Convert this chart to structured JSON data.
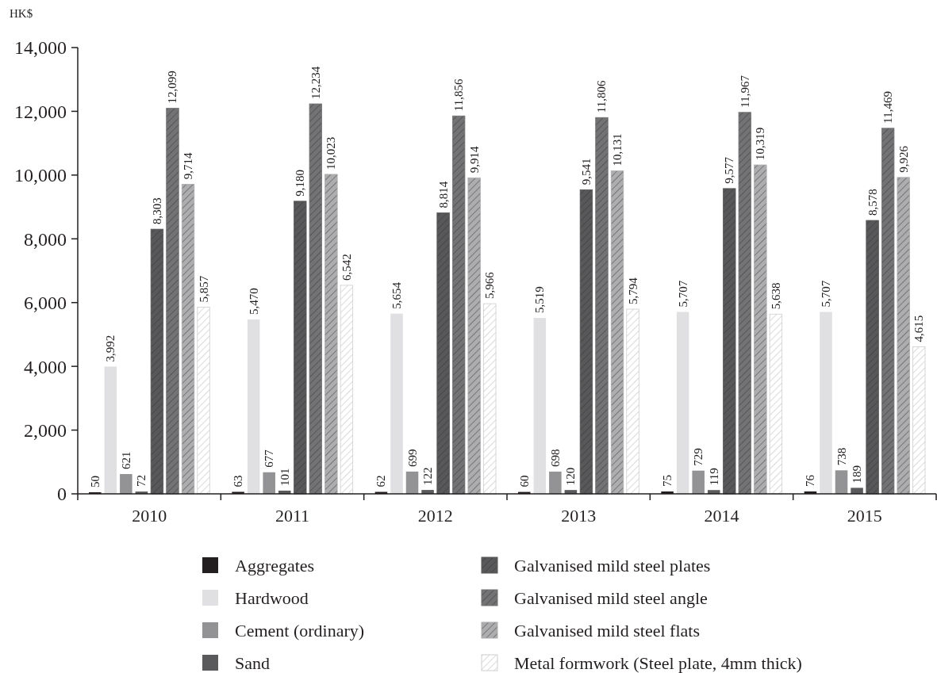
{
  "chart_data": {
    "type": "bar",
    "ylabel": "HK$",
    "categories": [
      "2010",
      "2011",
      "2012",
      "2013",
      "2014",
      "2015"
    ],
    "series": [
      {
        "name": "Aggregates",
        "color": "#231f20",
        "values": [
          50,
          63,
          62,
          60,
          75,
          76
        ],
        "value_labels": [
          "50",
          "63",
          "62",
          "60",
          "75",
          "76"
        ]
      },
      {
        "name": "Hardwood",
        "color": "#e0e0e2",
        "values": [
          3992,
          5470,
          5654,
          5519,
          5707,
          5707
        ],
        "value_labels": [
          "3,992",
          "5,470",
          "5,654",
          "5,519",
          "5,707",
          "5,707"
        ]
      },
      {
        "name": "Cement (ordinary)",
        "color": "#939395",
        "values": [
          621,
          677,
          699,
          698,
          729,
          738
        ],
        "value_labels": [
          "621",
          "677",
          "699",
          "698",
          "729",
          "738"
        ]
      },
      {
        "name": "Sand",
        "color": "#5a5a5c",
        "values": [
          72,
          101,
          122,
          120,
          119,
          189
        ],
        "value_labels": [
          "72",
          "101",
          "122",
          "120",
          "119",
          "189"
        ]
      },
      {
        "name": "Galvanised mild steel plates",
        "color": "#58585a",
        "values": [
          8303,
          9180,
          8814,
          9541,
          9577,
          8578
        ],
        "value_labels": [
          "8,303",
          "9,180",
          "8,814",
          "9,541",
          "9,577",
          "8,578"
        ]
      },
      {
        "name": "Galvanised mild steel angle",
        "color": "#737375",
        "values": [
          12099,
          12234,
          11856,
          11806,
          11967,
          11469
        ],
        "value_labels": [
          "12,099",
          "12,234",
          "11,856",
          "11,806",
          "11,967",
          "11,469"
        ]
      },
      {
        "name": "Galvanised mild steel flats",
        "color": "#adadaf",
        "values": [
          9714,
          10023,
          9914,
          10131,
          10319,
          9926
        ],
        "value_labels": [
          "9,714",
          "10,023",
          "9,914",
          "10,131",
          "10,319",
          "9,926"
        ]
      },
      {
        "name": "Metal formwork (Steel plate, 4mm thick)",
        "color": "#cecece",
        "values": [
          5857,
          6542,
          5966,
          5794,
          5638,
          4615
        ],
        "value_labels": [
          "5,857",
          "6,542",
          "5,966",
          "5,794",
          "5,638",
          "4,615"
        ]
      }
    ],
    "ylim": [
      0,
      14000
    ],
    "yticks": [
      0,
      {
        "value": 2000,
        "label": "2,000"
      },
      {
        "value": 4000,
        "label": "4,000"
      },
      {
        "value": 6000,
        "label": "6,000"
      },
      {
        "value": 8000,
        "label": "8,000"
      },
      {
        "value": 10000,
        "label": "10,000"
      },
      {
        "value": 12000,
        "label": "12,000"
      },
      {
        "value": 14000,
        "label": "14,000"
      }
    ],
    "legend": "bottom"
  }
}
